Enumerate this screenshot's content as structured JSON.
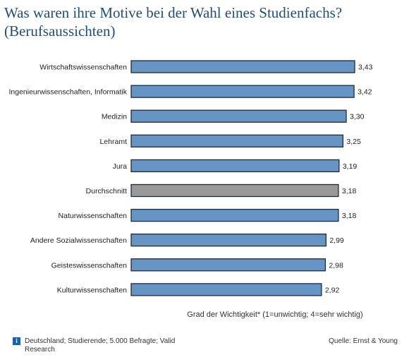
{
  "title_line1": "Was waren ihre Motive bei der Wahl eines Studienfachs?",
  "title_line2": "(Berufsaussichten)",
  "footer": {
    "note": "Deutschland; Studierende; 5.000 Befragte; Valid Research",
    "source": "Quelle: Ernst & Young",
    "info_icon": "info-icon"
  },
  "colors": {
    "bar": "#6694c4",
    "highlight": "#999999",
    "bar_border": "#1d2b3a"
  },
  "chart_data": {
    "type": "bar",
    "orientation": "horizontal",
    "categories": [
      "Wirtschaftswissenschaften",
      "Ingenieurwissenschaften, Informatik",
      "Medizin",
      "Lehramt",
      "Jura",
      "Durchschnitt",
      "Naturwissenschaften",
      "Andere Sozialwissenschaften",
      "Geisteswissenschaften",
      "Kulturwissenschaften"
    ],
    "values": [
      3.43,
      3.42,
      3.3,
      3.25,
      3.19,
      3.18,
      3.18,
      2.99,
      2.98,
      2.92
    ],
    "value_labels": [
      "3,43",
      "3,42",
      "3,30",
      "3,25",
      "3,19",
      "3,18",
      "3,18",
      "2,99",
      "2,98",
      "2,92"
    ],
    "highlight_category": "Durchschnitt",
    "xlabel": "Grad der Wichtigkeit* (1=unwichtig; 4=sehr wichtig)",
    "ylabel": "",
    "xlim": [
      0,
      3.43
    ],
    "grid": false,
    "legend": "none"
  }
}
